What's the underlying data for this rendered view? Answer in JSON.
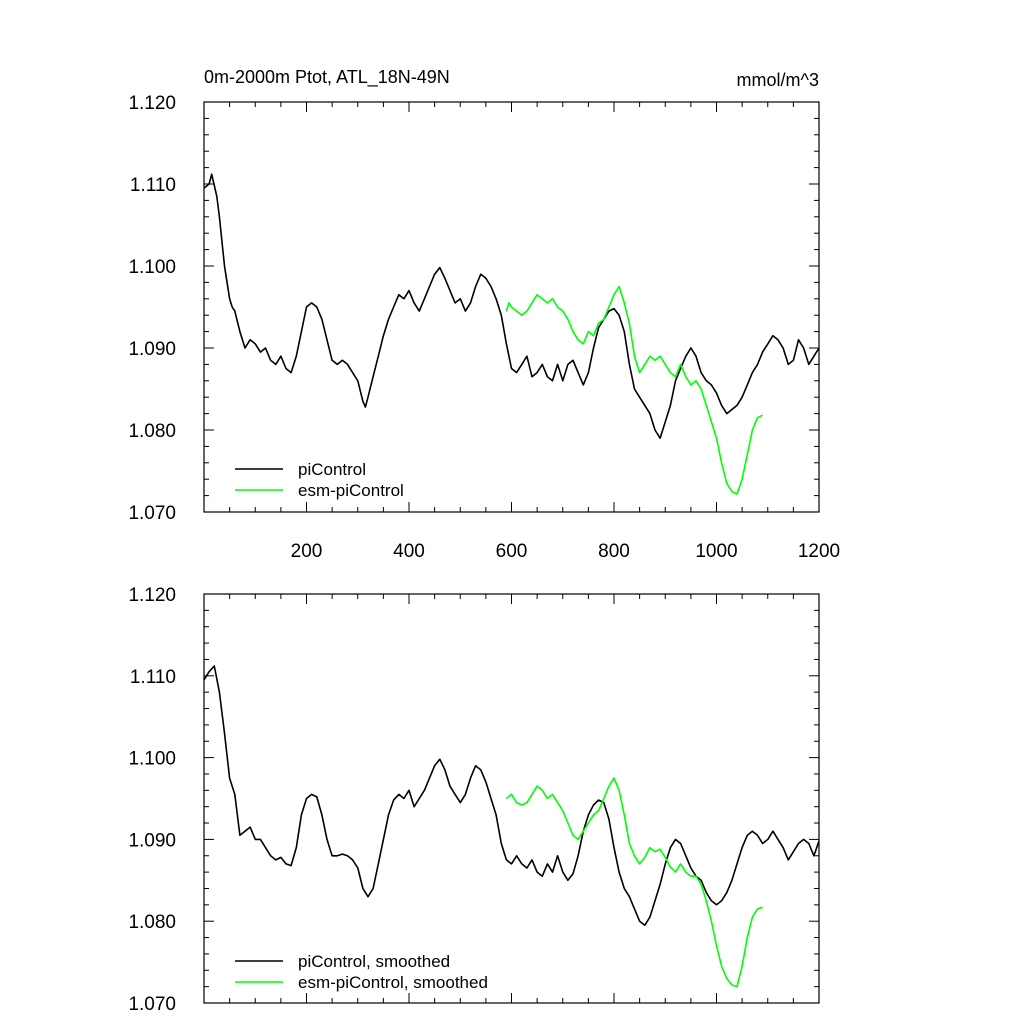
{
  "chart_data": [
    {
      "type": "line",
      "title": "0m-2000m Ptot, ATL_18N-49N",
      "units": "mmol/m^3",
      "xlim": [
        0,
        1200
      ],
      "ylim": [
        1.07,
        1.12
      ],
      "xticks": [
        "200",
        "400",
        "600",
        "800",
        "1000",
        "1200"
      ],
      "yticks": [
        "1.070",
        "1.080",
        "1.090",
        "1.100",
        "1.110",
        "1.120"
      ],
      "legend": "bottom-left",
      "series": [
        {
          "name": "piControl",
          "color": "#000000",
          "x": [
            0,
            10,
            15,
            25,
            30,
            40,
            50,
            55,
            60,
            70,
            80,
            90,
            100,
            110,
            120,
            130,
            140,
            150,
            160,
            170,
            180,
            190,
            200,
            210,
            220,
            230,
            240,
            250,
            260,
            270,
            280,
            290,
            300,
            310,
            315,
            320,
            330,
            340,
            350,
            360,
            370,
            380,
            390,
            400,
            410,
            420,
            430,
            440,
            450,
            460,
            470,
            480,
            490,
            500,
            510,
            520,
            530,
            540,
            550,
            560,
            570,
            580,
            590,
            600,
            610,
            620,
            630,
            640,
            650,
            660,
            670,
            680,
            690,
            700,
            710,
            720,
            730,
            740,
            750,
            760,
            770,
            780,
            790,
            800,
            810,
            820,
            830,
            840,
            850,
            860,
            870,
            880,
            890,
            900,
            910,
            920,
            930,
            940,
            950,
            960,
            970,
            980,
            990,
            1000,
            1010,
            1020,
            1030,
            1040,
            1050,
            1060,
            1070,
            1080,
            1090,
            1100,
            1110,
            1120,
            1130,
            1140,
            1150,
            1160,
            1170,
            1180,
            1190,
            1200
          ],
          "y": [
            1.1095,
            1.11,
            1.1112,
            1.1085,
            1.106,
            1.1,
            1.096,
            1.095,
            1.0945,
            1.092,
            1.09,
            1.091,
            1.0905,
            1.0895,
            1.09,
            1.0885,
            1.088,
            1.089,
            1.0875,
            1.087,
            1.089,
            1.092,
            1.095,
            1.0955,
            1.095,
            1.0935,
            1.091,
            1.0885,
            1.088,
            1.0885,
            1.088,
            1.087,
            1.086,
            1.0835,
            1.0828,
            1.084,
            1.0865,
            1.089,
            1.0915,
            1.0935,
            1.095,
            1.0965,
            1.096,
            1.097,
            1.0955,
            1.0945,
            1.096,
            1.0975,
            1.099,
            1.0998,
            1.0985,
            1.097,
            1.0955,
            1.096,
            1.0945,
            1.0955,
            1.0975,
            1.099,
            1.0985,
            1.0975,
            1.096,
            1.094,
            1.0905,
            1.0875,
            1.087,
            1.088,
            1.089,
            1.0865,
            1.087,
            1.088,
            1.0865,
            1.086,
            1.088,
            1.086,
            1.088,
            1.0885,
            1.087,
            1.0855,
            1.087,
            1.09,
            1.0925,
            1.0935,
            1.0945,
            1.0948,
            1.094,
            1.092,
            1.088,
            1.085,
            1.084,
            1.083,
            1.082,
            1.08,
            1.079,
            1.081,
            1.083,
            1.086,
            1.0875,
            1.089,
            1.09,
            1.089,
            1.087,
            1.086,
            1.0855,
            1.0845,
            1.083,
            1.082,
            1.0825,
            1.083,
            1.084,
            1.0855,
            1.087,
            1.088,
            1.0895,
            1.0905,
            1.0915,
            1.091,
            1.09,
            1.088,
            1.0885,
            1.091,
            1.09,
            1.088,
            1.089,
            1.09
          ]
        },
        {
          "name": "esm-piControl",
          "color": "#00ff00",
          "x": [
            590,
            595,
            600,
            610,
            620,
            630,
            640,
            650,
            660,
            670,
            680,
            690,
            700,
            710,
            720,
            730,
            740,
            750,
            760,
            770,
            780,
            790,
            800,
            810,
            820,
            830,
            840,
            850,
            860,
            870,
            880,
            890,
            900,
            910,
            920,
            930,
            940,
            950,
            960,
            970,
            980,
            990,
            1000,
            1010,
            1020,
            1030,
            1040,
            1050,
            1060,
            1070,
            1080,
            1090
          ],
          "y": [
            1.0945,
            1.0955,
            1.095,
            1.0945,
            1.094,
            1.0945,
            1.0955,
            1.0965,
            1.096,
            1.0955,
            1.096,
            1.095,
            1.0945,
            1.0935,
            1.092,
            1.091,
            1.0905,
            1.092,
            1.0915,
            1.093,
            1.0935,
            1.095,
            1.0965,
            1.0975,
            1.0955,
            1.093,
            1.089,
            1.087,
            1.088,
            1.089,
            1.0885,
            1.089,
            1.088,
            1.087,
            1.0865,
            1.088,
            1.0865,
            1.0855,
            1.086,
            1.085,
            1.083,
            1.081,
            1.079,
            1.076,
            1.0735,
            1.0725,
            1.0722,
            1.074,
            1.077,
            1.08,
            1.0815,
            1.0818
          ]
        }
      ]
    },
    {
      "type": "line",
      "xlim": [
        0,
        1200
      ],
      "ylim": [
        1.07,
        1.12
      ],
      "yticks": [
        "1.070",
        "1.080",
        "1.090",
        "1.100",
        "1.110",
        "1.120"
      ],
      "legend": "bottom-left",
      "series": [
        {
          "name": "piControl, smoothed",
          "color": "#000000",
          "x": [
            0,
            10,
            20,
            30,
            40,
            50,
            60,
            70,
            80,
            90,
            100,
            110,
            120,
            130,
            140,
            150,
            160,
            170,
            180,
            190,
            200,
            210,
            220,
            230,
            240,
            250,
            260,
            270,
            280,
            290,
            300,
            310,
            320,
            330,
            340,
            350,
            360,
            370,
            380,
            390,
            400,
            410,
            420,
            430,
            440,
            450,
            460,
            470,
            480,
            490,
            500,
            510,
            520,
            530,
            540,
            550,
            560,
            570,
            580,
            590,
            600,
            610,
            620,
            630,
            640,
            650,
            660,
            670,
            680,
            690,
            700,
            710,
            720,
            730,
            740,
            750,
            760,
            770,
            780,
            790,
            800,
            810,
            820,
            830,
            840,
            850,
            860,
            870,
            880,
            890,
            900,
            910,
            920,
            930,
            940,
            950,
            960,
            970,
            980,
            990,
            1000,
            1010,
            1020,
            1030,
            1040,
            1050,
            1060,
            1070,
            1080,
            1090,
            1100,
            1110,
            1120,
            1130,
            1140,
            1150,
            1160,
            1170,
            1180,
            1190,
            1200
          ],
          "y": [
            1.1095,
            1.1105,
            1.1112,
            1.108,
            1.103,
            1.0975,
            1.0955,
            1.0905,
            1.091,
            1.0915,
            1.09,
            1.09,
            1.089,
            1.088,
            1.0875,
            1.0878,
            1.087,
            1.0868,
            1.089,
            1.093,
            1.095,
            1.0955,
            1.0952,
            1.093,
            1.09,
            1.088,
            1.088,
            1.0882,
            1.088,
            1.0875,
            1.0865,
            1.084,
            1.083,
            1.084,
            1.087,
            1.09,
            1.093,
            1.0948,
            1.0955,
            1.095,
            1.096,
            1.094,
            1.095,
            1.096,
            1.0975,
            1.099,
            1.0998,
            1.0985,
            1.0965,
            1.0955,
            1.0945,
            1.0955,
            1.0975,
            1.099,
            1.0985,
            1.097,
            1.095,
            1.093,
            1.0895,
            1.0875,
            1.087,
            1.088,
            1.087,
            1.0865,
            1.0875,
            1.086,
            1.0855,
            1.087,
            1.086,
            1.088,
            1.086,
            1.085,
            1.0858,
            1.088,
            1.091,
            1.093,
            1.0942,
            1.0948,
            1.0945,
            1.0925,
            1.089,
            1.086,
            1.084,
            1.083,
            1.0815,
            1.08,
            1.0795,
            1.0805,
            1.0825,
            1.0845,
            1.087,
            1.089,
            1.09,
            1.0895,
            1.088,
            1.0865,
            1.0855,
            1.085,
            1.0835,
            1.0825,
            1.082,
            1.0825,
            1.0835,
            1.085,
            1.087,
            1.089,
            1.0905,
            1.091,
            1.0905,
            1.0895,
            1.09,
            1.091,
            1.09,
            1.089,
            1.0875,
            1.0885,
            1.0895,
            1.09,
            1.0895,
            1.088,
            1.0898
          ]
        },
        {
          "name": "esm-piControl, smoothed",
          "color": "#00ff00",
          "x": [
            590,
            600,
            610,
            620,
            630,
            640,
            650,
            660,
            670,
            680,
            690,
            700,
            710,
            720,
            730,
            740,
            750,
            760,
            770,
            780,
            790,
            800,
            810,
            820,
            830,
            840,
            850,
            860,
            870,
            880,
            890,
            900,
            910,
            920,
            930,
            940,
            950,
            960,
            970,
            980,
            990,
            1000,
            1010,
            1020,
            1030,
            1040,
            1050,
            1060,
            1070,
            1080,
            1090
          ],
          "y": [
            1.095,
            1.0955,
            1.0945,
            1.0942,
            1.0945,
            1.0955,
            1.0965,
            1.096,
            1.095,
            1.0955,
            1.0945,
            1.0935,
            1.092,
            1.0905,
            1.09,
            1.091,
            1.092,
            1.093,
            1.0935,
            1.095,
            1.0965,
            1.0975,
            1.096,
            1.093,
            1.0895,
            1.088,
            1.087,
            1.0878,
            1.089,
            1.0885,
            1.0888,
            1.0878,
            1.0866,
            1.086,
            1.087,
            1.086,
            1.0855,
            1.0855,
            1.0845,
            1.0825,
            1.08,
            1.077,
            1.0745,
            1.073,
            1.0722,
            1.072,
            1.0745,
            1.078,
            1.0805,
            1.0815,
            1.0817
          ]
        }
      ]
    }
  ]
}
